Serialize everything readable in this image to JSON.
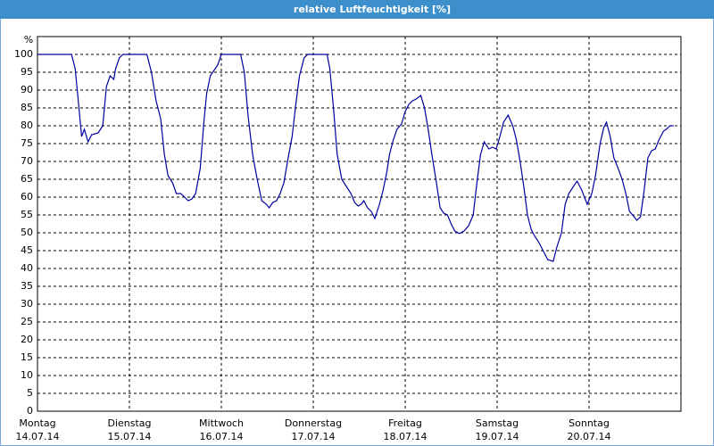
{
  "chart_data": {
    "type": "line",
    "title": "relative Luftfeuchtigkeit [%]",
    "y_label": "%",
    "xlim": [
      0,
      7
    ],
    "ylim": [
      0,
      105
    ],
    "xticks": [
      {
        "value": 0,
        "label": "Montag"
      },
      {
        "value": 1,
        "label": "Dienstag"
      },
      {
        "value": 2,
        "label": "Mittwoch"
      },
      {
        "value": 3,
        "label": "Donnerstag"
      },
      {
        "value": 4,
        "label": "Freitag"
      },
      {
        "value": 5,
        "label": "Samstag"
      },
      {
        "value": 6,
        "label": "Sonntag"
      }
    ],
    "xtick_dates": [
      "14.07.14",
      "15.07.14",
      "16.07.14",
      "17.07.14",
      "18.07.14",
      "19.07.14",
      "20.07.14"
    ],
    "yticks": [
      0,
      5,
      10,
      15,
      20,
      25,
      30,
      35,
      40,
      45,
      50,
      55,
      60,
      65,
      70,
      75,
      80,
      85,
      90,
      95,
      100
    ],
    "grid": true,
    "series": [
      {
        "name": "relative Luftfeuchtigkeit",
        "color": "#0000a0",
        "x": [
          0,
          0.37,
          0.41,
          0.44,
          0.48,
          0.51,
          0.55,
          0.59,
          0.66,
          0.71,
          0.75,
          0.79,
          0.83,
          0.85,
          0.89,
          0.93,
          1.19,
          1.24,
          1.29,
          1.34,
          1.38,
          1.42,
          1.47,
          1.51,
          1.56,
          1.6,
          1.64,
          1.68,
          1.72,
          1.77,
          1.81,
          1.84,
          1.88,
          1.92,
          1.96,
          2.0,
          2.21,
          2.25,
          2.29,
          2.34,
          2.39,
          2.44,
          2.49,
          2.52,
          2.56,
          2.6,
          2.64,
          2.68,
          2.72,
          2.77,
          2.81,
          2.85,
          2.9,
          2.94,
          3.15,
          3.18,
          3.22,
          3.26,
          3.31,
          3.36,
          3.41,
          3.45,
          3.49,
          3.52,
          3.55,
          3.59,
          3.63,
          3.67,
          3.72,
          3.76,
          3.8,
          3.83,
          3.87,
          3.91,
          3.96,
          4.0,
          4.04,
          4.08,
          4.12,
          4.17,
          4.21,
          4.25,
          4.29,
          4.34,
          4.38,
          4.42,
          4.46,
          4.5,
          4.54,
          4.59,
          4.64,
          4.69,
          4.74,
          4.78,
          4.82,
          4.86,
          4.91,
          4.95,
          4.99,
          5.03,
          5.07,
          5.12,
          5.17,
          5.21,
          5.25,
          5.29,
          5.33,
          5.37,
          5.41,
          5.45,
          5.5,
          5.55,
          5.61,
          5.65,
          5.7,
          5.74,
          5.78,
          5.83,
          5.87,
          5.92,
          5.98,
          6.03,
          6.07,
          6.12,
          6.16,
          6.19,
          6.23,
          6.27,
          6.31,
          6.36,
          6.4,
          6.44,
          6.49,
          6.52,
          6.56,
          6.6,
          6.64,
          6.68,
          6.72,
          6.76,
          6.81,
          6.84,
          6.88,
          6.92
        ],
        "values": [
          100,
          100,
          96,
          88,
          77,
          79,
          75.5,
          77.5,
          78,
          80,
          91,
          94,
          93,
          96,
          99,
          100,
          100,
          95,
          87,
          82,
          72,
          66,
          64,
          61,
          61,
          60,
          59,
          59.5,
          61,
          68,
          81,
          89,
          94,
          95.5,
          97,
          100,
          100,
          95,
          83,
          72,
          65,
          59,
          58,
          57,
          58.5,
          59,
          61,
          64,
          70,
          77,
          86,
          94,
          99,
          100,
          100,
          96,
          85,
          72,
          65,
          63,
          61,
          58.5,
          57.5,
          58,
          59,
          57,
          56,
          54,
          58,
          62,
          67,
          72,
          76,
          79,
          80.5,
          84,
          86,
          87,
          87.5,
          88.5,
          85,
          79,
          72,
          64,
          57,
          55.5,
          55,
          52.5,
          50.5,
          49.8,
          50.5,
          52,
          55,
          64,
          72,
          75.5,
          73.5,
          74,
          73.5,
          77,
          81,
          83,
          80,
          76,
          70,
          63,
          55,
          51,
          49,
          47.5,
          45,
          42.5,
          42,
          46,
          50,
          58,
          61,
          63,
          64.5,
          62,
          58,
          61,
          66,
          75,
          79.5,
          81,
          77,
          71,
          68.5,
          65,
          61,
          56,
          54.5,
          53.5,
          54.5,
          62,
          71,
          73,
          73.5,
          76,
          78.5,
          79,
          80,
          80
        ]
      }
    ]
  }
}
